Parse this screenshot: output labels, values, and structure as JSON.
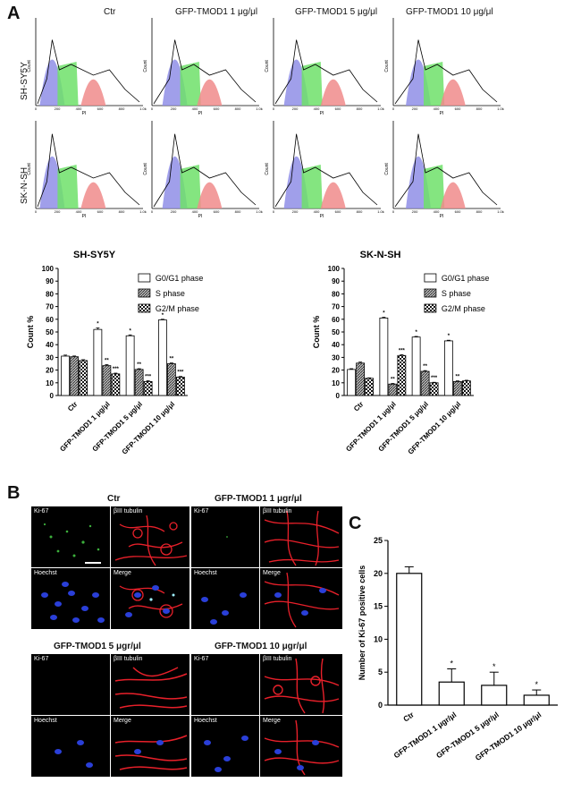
{
  "panel_letters": {
    "a": "A",
    "b": "B",
    "c": "C"
  },
  "flow": {
    "column_titles": [
      "Ctr",
      "GFP-TMOD1 1 μg/μl",
      "GFP-TMOD1 5 μg/μl",
      "GFP-TMOD1 10 μg/μl"
    ],
    "row_labels": [
      "SH-SY5Y",
      "SK-N-SH"
    ],
    "x_axis_label": "PI",
    "y_axis_label": "Count",
    "x_ticks": [
      "0",
      "200",
      "400",
      "600",
      "800",
      "1.0k"
    ]
  },
  "chart_data": [
    {
      "type": "bar",
      "title": "SH-SY5Y",
      "ylabel": "Count %",
      "ylim": [
        0,
        100
      ],
      "yticks": [
        0,
        10,
        20,
        30,
        40,
        50,
        60,
        70,
        80,
        90,
        100
      ],
      "categories": [
        "Ctr",
        "GFP-TMOD1 1 μg/μl",
        "GFP-TMOD1 5 μg/μl",
        "GFP-TMOD1 10 μg/μl"
      ],
      "series": [
        {
          "name": "G0/G1 phase",
          "values": [
            31,
            52,
            47,
            59.5
          ],
          "errors": [
            0.8,
            1.2,
            0.7,
            0.5
          ],
          "annotations": [
            "",
            "*",
            "*",
            "*"
          ],
          "color": "#ffffff"
        },
        {
          "name": "S phase",
          "values": [
            30.5,
            23.5,
            20.5,
            25
          ],
          "errors": [
            0.6,
            0.8,
            0.6,
            0.6
          ],
          "annotations": [
            "",
            "**",
            "**",
            "**"
          ],
          "color": "#888888"
        },
        {
          "name": "G2/M phase",
          "values": [
            27.5,
            17,
            11,
            14.5
          ],
          "errors": [
            0.7,
            0.6,
            0.6,
            0.5
          ],
          "annotations": [
            "",
            "***",
            "***",
            "***"
          ],
          "color": "#444444"
        }
      ],
      "legend": "top-right"
    },
    {
      "type": "bar",
      "title": "SK-N-SH",
      "ylabel": "Count %",
      "ylim": [
        0,
        100
      ],
      "yticks": [
        0,
        10,
        20,
        30,
        40,
        50,
        60,
        70,
        80,
        90,
        100
      ],
      "categories": [
        "Ctr",
        "GFP-TMOD1 1 μg/μl",
        "GFP-TMOD1 5 μg/μl",
        "GFP-TMOD1 10 μg/μl"
      ],
      "series": [
        {
          "name": "G0/G1 phase",
          "values": [
            20.5,
            61,
            46,
            43
          ],
          "errors": [
            0.6,
            0.6,
            0.5,
            0.5
          ],
          "annotations": [
            "",
            "*",
            "*",
            "*"
          ],
          "color": "#ffffff"
        },
        {
          "name": "S phase",
          "values": [
            25.5,
            9,
            19,
            11
          ],
          "errors": [
            0.8,
            0.5,
            0.6,
            0.5
          ],
          "annotations": [
            "",
            "**",
            "**",
            "**"
          ],
          "color": "#888888"
        },
        {
          "name": "G2/M phase",
          "values": [
            13.5,
            31.5,
            10,
            11.5
          ],
          "errors": [
            0.4,
            0.6,
            0.4,
            0.5
          ],
          "annotations": [
            "",
            "***",
            "***",
            ""
          ],
          "color": "#444444"
        }
      ],
      "legend": "top-right"
    },
    {
      "type": "bar",
      "title": "",
      "ylabel": "Number of Ki-67 positive cells",
      "ylim": [
        0,
        25
      ],
      "yticks": [
        0,
        5,
        10,
        15,
        20,
        25
      ],
      "categories": [
        "Ctr",
        "GFP-TMOD1 1 μgr/μl",
        "GFP-TMOD1 5 μgr/μl",
        "GFP-TMOD1 10 μgr/μl"
      ],
      "series": [
        {
          "name": "",
          "values": [
            20,
            3.5,
            3,
            1.5
          ],
          "errors": [
            1,
            2,
            2,
            0.8
          ],
          "annotations": [
            "",
            "*",
            "*",
            "*"
          ],
          "color": "#ffffff"
        }
      ]
    }
  ],
  "micrographs": {
    "titles": [
      "Ctr",
      "GFP-TMOD1 1 μgr/μl",
      "GFP-TMOD1 5 μgr/μl",
      "GFP-TMOD1 10 μgr/μl"
    ],
    "channel_labels": [
      "Ki-67",
      "βIII tubulin",
      "Hoechst",
      "Merge"
    ]
  }
}
